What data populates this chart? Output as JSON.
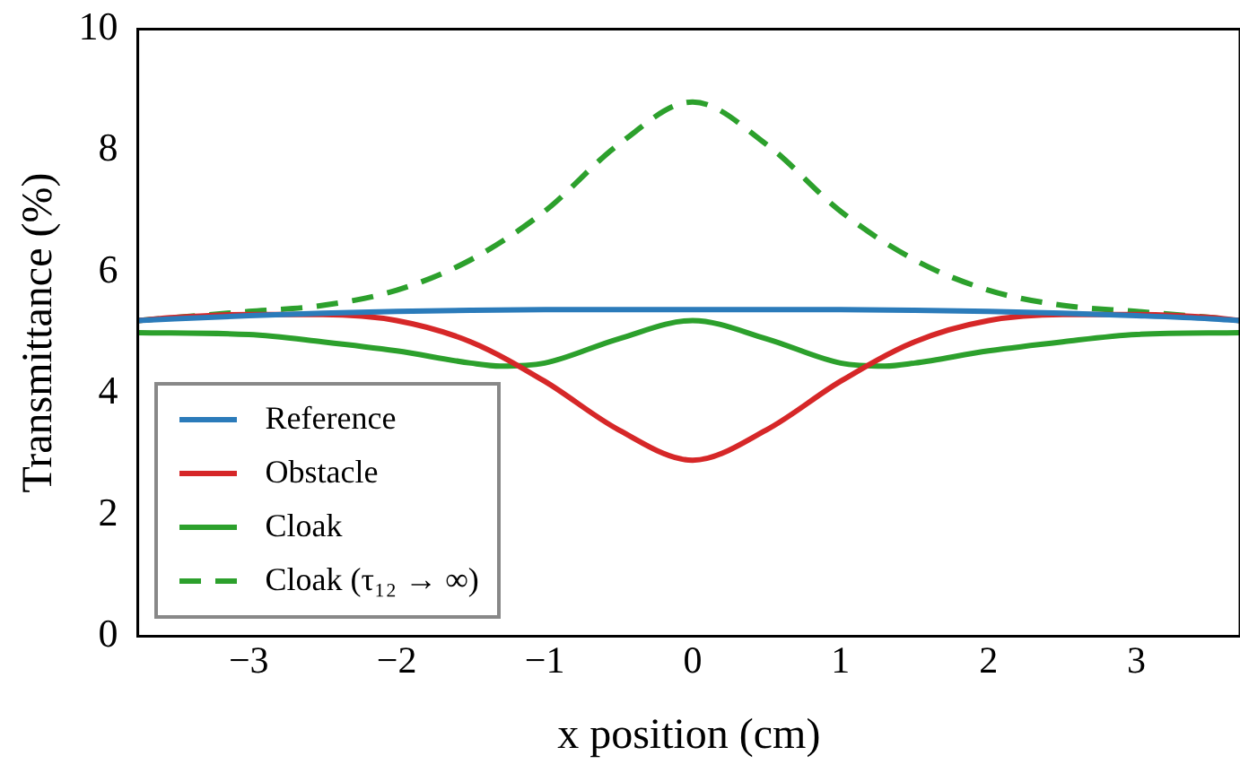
{
  "chart_data": {
    "type": "line",
    "xlabel": "x position (cm)",
    "ylabel": "Transmittance (%)",
    "xlim": [
      -3.75,
      3.7
    ],
    "xticks": [
      {
        "value": -3,
        "label": "−3"
      },
      {
        "value": -2,
        "label": "−2"
      },
      {
        "value": -1,
        "label": "−1"
      },
      0,
      1,
      2,
      3
    ],
    "ylim": [
      0,
      10
    ],
    "yticks": [
      0,
      2,
      4,
      6,
      8,
      10
    ],
    "grid": false,
    "legend": "bottom left",
    "marker": "none",
    "series": [
      {
        "name": "Reference",
        "color": "#2b7bba",
        "x": [
          -3.75,
          -3.5,
          -3,
          -2.5,
          -2,
          -1.5,
          -1,
          -0.5,
          0,
          0.5,
          1,
          1.5,
          2,
          2.5,
          3,
          3.5,
          3.7
        ],
        "values": [
          5.2,
          5.23,
          5.28,
          5.32,
          5.35,
          5.37,
          5.38,
          5.38,
          5.38,
          5.38,
          5.38,
          5.37,
          5.35,
          5.32,
          5.28,
          5.23,
          5.2
        ]
      },
      {
        "name": "Obstacle",
        "color": "#d62728",
        "x": [
          -3.75,
          -3.5,
          -3,
          -2.5,
          -2,
          -1.5,
          -1,
          -0.5,
          0,
          0.5,
          1,
          1.5,
          2,
          2.5,
          3,
          3.5,
          3.7
        ],
        "values": [
          5.2,
          5.25,
          5.3,
          5.3,
          5.2,
          4.85,
          4.2,
          3.4,
          2.9,
          3.4,
          4.2,
          4.85,
          5.2,
          5.3,
          5.3,
          5.25,
          5.2
        ]
      },
      {
        "name": "Cloak",
        "color": "#2ca02c",
        "x": [
          -3.75,
          -3,
          -2.5,
          -2,
          -1.5,
          -1.3,
          -1,
          -0.5,
          0,
          0.5,
          1,
          1.3,
          1.5,
          2,
          2.5,
          3,
          3.7
        ],
        "values": [
          5.0,
          4.97,
          4.85,
          4.7,
          4.5,
          4.45,
          4.5,
          4.9,
          5.2,
          4.9,
          4.5,
          4.45,
          4.5,
          4.7,
          4.85,
          4.97,
          5.0
        ]
      },
      {
        "name": "Cloak (τ₁₂ → ∞)",
        "color": "#2ca02c",
        "line_style": "dashed",
        "x": [
          -3.75,
          -3,
          -2.5,
          -2,
          -1.5,
          -1,
          -0.5,
          0,
          0.5,
          1,
          1.5,
          2,
          2.5,
          3,
          3.5,
          3.7
        ],
        "values": [
          5.2,
          5.35,
          5.45,
          5.7,
          6.2,
          7.0,
          8.1,
          8.8,
          8.1,
          7.0,
          6.2,
          5.7,
          5.45,
          5.35,
          5.25,
          5.2
        ]
      }
    ]
  }
}
